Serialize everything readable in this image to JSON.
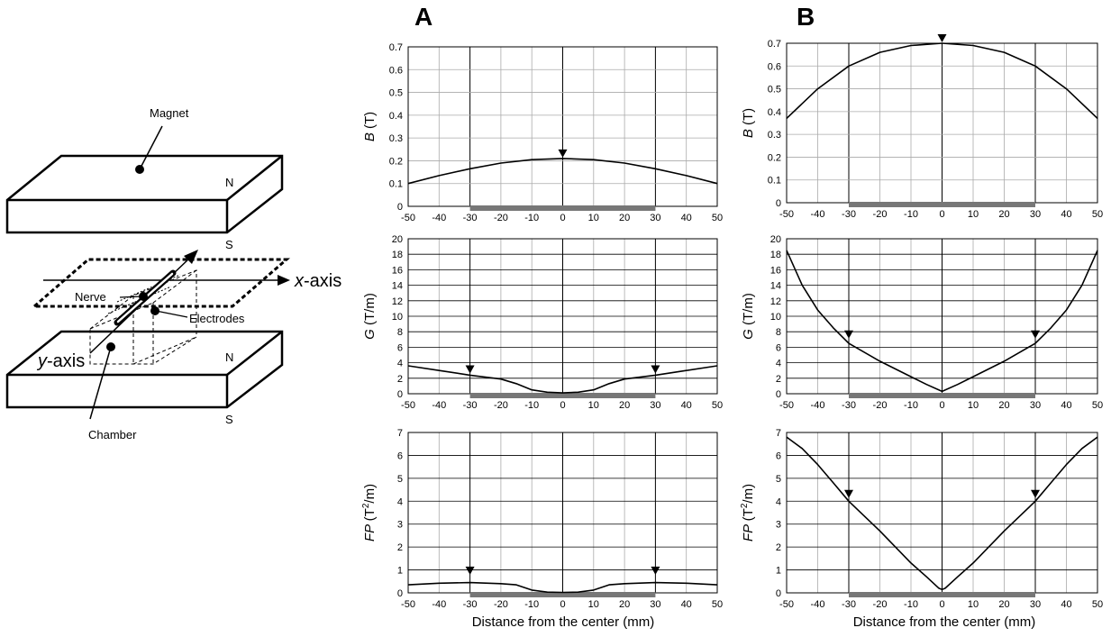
{
  "figure": {
    "panel_labels": [
      "A",
      "B"
    ],
    "xlabel": "Distance from the center (mm)"
  },
  "diagram": {
    "magnet": "Magnet",
    "nerve": "Nerve",
    "electrodes": "Electrodes",
    "chamber": "Chamber",
    "x_axis": "x",
    "y_axis": "y",
    "axis_suffix": "-axis",
    "north": "N",
    "south": "S"
  },
  "chart_data": [
    {
      "id": "A-B",
      "type": "line",
      "panel": "A",
      "ylabel_var": "B",
      "ylabel_unit": "(T)",
      "xlim": [
        -50,
        50
      ],
      "ylim": [
        0,
        0.7
      ],
      "xticks": [
        -50,
        -40,
        -30,
        -20,
        -10,
        0,
        10,
        20,
        30,
        40,
        50
      ],
      "yticks": [
        0,
        0.1,
        0.2,
        0.3,
        0.4,
        0.5,
        0.6,
        0.7
      ],
      "ytick_labels": [
        "0",
        "0.1",
        "0.2",
        "0.3",
        "0.4",
        "0.5",
        "0.6",
        "0.7"
      ],
      "x": [
        -50,
        -40,
        -30,
        -20,
        -10,
        0,
        10,
        20,
        30,
        40,
        50
      ],
      "y": [
        0.1,
        0.135,
        0.165,
        0.19,
        0.205,
        0.21,
        0.205,
        0.19,
        0.165,
        0.135,
        0.1
      ],
      "markers": [
        {
          "x": 0,
          "y": 0.21
        }
      ],
      "region": [
        -30,
        30
      ],
      "grid": true
    },
    {
      "id": "B-B",
      "type": "line",
      "panel": "B",
      "ylabel_var": "B",
      "ylabel_unit": "(T)",
      "xlim": [
        -50,
        50
      ],
      "ylim": [
        0,
        0.7
      ],
      "xticks": [
        -50,
        -40,
        -30,
        -20,
        -10,
        0,
        10,
        20,
        30,
        40,
        50
      ],
      "yticks": [
        0,
        0.1,
        0.2,
        0.3,
        0.4,
        0.5,
        0.6,
        0.7
      ],
      "ytick_labels": [
        "0",
        "0.1",
        "0.2",
        "0.3",
        "0.4",
        "0.5",
        "0.6",
        "0.7"
      ],
      "x": [
        -50,
        -40,
        -30,
        -20,
        -10,
        0,
        10,
        20,
        30,
        40,
        50
      ],
      "y": [
        0.37,
        0.5,
        0.6,
        0.66,
        0.69,
        0.7,
        0.69,
        0.66,
        0.6,
        0.5,
        0.37
      ],
      "markers": [
        {
          "x": 0,
          "y": 0.7
        }
      ],
      "region": [
        -30,
        30
      ],
      "grid": true
    },
    {
      "id": "A-G",
      "type": "line",
      "panel": "A",
      "ylabel_var": "G",
      "ylabel_unit": "(T/m)",
      "xlim": [
        -50,
        50
      ],
      "ylim": [
        0,
        20
      ],
      "xticks": [
        -50,
        -40,
        -30,
        -20,
        -10,
        0,
        10,
        20,
        30,
        40,
        50
      ],
      "yticks": [
        0,
        2,
        4,
        6,
        8,
        10,
        12,
        14,
        16,
        18,
        20
      ],
      "ytick_labels": [
        "0",
        "2",
        "4",
        "6",
        "8",
        "10",
        "12",
        "14",
        "16",
        "18",
        "20"
      ],
      "x": [
        -50,
        -40,
        -30,
        -20,
        -15,
        -10,
        -5,
        0,
        5,
        10,
        15,
        20,
        30,
        40,
        50
      ],
      "y": [
        3.6,
        3.0,
        2.4,
        1.9,
        1.3,
        0.5,
        0.2,
        0.1,
        0.2,
        0.5,
        1.3,
        1.9,
        2.4,
        3.0,
        3.6
      ],
      "markers": [
        {
          "x": -30,
          "y": 2.5
        },
        {
          "x": 30,
          "y": 2.5
        }
      ],
      "region": [
        -30,
        30
      ],
      "grid": true
    },
    {
      "id": "B-G",
      "type": "line",
      "panel": "B",
      "ylabel_var": "G",
      "ylabel_unit": "(T/m)",
      "xlim": [
        -50,
        50
      ],
      "ylim": [
        0,
        20
      ],
      "xticks": [
        -50,
        -40,
        -30,
        -20,
        -10,
        0,
        10,
        20,
        30,
        40,
        50
      ],
      "yticks": [
        0,
        2,
        4,
        6,
        8,
        10,
        12,
        14,
        16,
        18,
        20
      ],
      "ytick_labels": [
        "0",
        "2",
        "4",
        "6",
        "8",
        "10",
        "12",
        "14",
        "16",
        "18",
        "20"
      ],
      "x": [
        -50,
        -45,
        -40,
        -35,
        -30,
        -20,
        -10,
        -5,
        0,
        5,
        10,
        20,
        30,
        35,
        40,
        45,
        50
      ],
      "y": [
        18.5,
        14.0,
        10.8,
        8.5,
        6.5,
        4.2,
        2.2,
        1.2,
        0.3,
        1.2,
        2.2,
        4.2,
        6.5,
        8.5,
        10.8,
        14.0,
        18.5
      ],
      "markers": [
        {
          "x": -30,
          "y": 7.0
        },
        {
          "x": 30,
          "y": 7.0
        }
      ],
      "region": [
        -30,
        30
      ],
      "grid": true
    },
    {
      "id": "A-FP",
      "type": "line",
      "panel": "A",
      "ylabel_var": "FP",
      "ylabel_unit": "(T",
      "ylabel_sup": "2",
      "ylabel_tail": "/m)",
      "xlim": [
        -50,
        50
      ],
      "ylim": [
        0,
        7
      ],
      "xticks": [
        -50,
        -40,
        -30,
        -20,
        -10,
        0,
        10,
        20,
        30,
        40,
        50
      ],
      "yticks": [
        0,
        1,
        2,
        3,
        4,
        5,
        6,
        7
      ],
      "ytick_labels": [
        "0",
        "1",
        "2",
        "3",
        "4",
        "5",
        "6",
        "7"
      ],
      "x": [
        -50,
        -40,
        -30,
        -20,
        -15,
        -10,
        -5,
        0,
        5,
        10,
        15,
        20,
        30,
        40,
        50
      ],
      "y": [
        0.35,
        0.42,
        0.45,
        0.4,
        0.35,
        0.12,
        0.03,
        0.02,
        0.03,
        0.12,
        0.35,
        0.4,
        0.45,
        0.42,
        0.35
      ],
      "markers": [
        {
          "x": -30,
          "y": 0.75
        },
        {
          "x": 30,
          "y": 0.75
        }
      ],
      "region": [
        -30,
        30
      ],
      "grid": true
    },
    {
      "id": "B-FP",
      "type": "line",
      "panel": "B",
      "ylabel_var": "FP",
      "ylabel_unit": "(T",
      "ylabel_sup": "2",
      "ylabel_tail": "/m)",
      "xlim": [
        -50,
        50
      ],
      "ylim": [
        0,
        7
      ],
      "xticks": [
        -50,
        -40,
        -30,
        -20,
        -10,
        0,
        10,
        20,
        30,
        40,
        50
      ],
      "yticks": [
        0,
        1,
        2,
        3,
        4,
        5,
        6,
        7
      ],
      "ytick_labels": [
        "0",
        "1",
        "2",
        "3",
        "4",
        "5",
        "6",
        "7"
      ],
      "x": [
        -50,
        -45,
        -40,
        -35,
        -30,
        -20,
        -10,
        -5,
        -1,
        0,
        1,
        5,
        10,
        20,
        30,
        35,
        40,
        45,
        50
      ],
      "y": [
        6.8,
        6.3,
        5.6,
        4.8,
        4.0,
        2.7,
        1.3,
        0.7,
        0.2,
        0.15,
        0.2,
        0.7,
        1.3,
        2.7,
        4.0,
        4.8,
        5.6,
        6.3,
        6.8
      ],
      "markers": [
        {
          "x": -30,
          "y": 4.1
        },
        {
          "x": 30,
          "y": 4.1
        }
      ],
      "region": [
        -30,
        30
      ],
      "grid": true
    }
  ]
}
